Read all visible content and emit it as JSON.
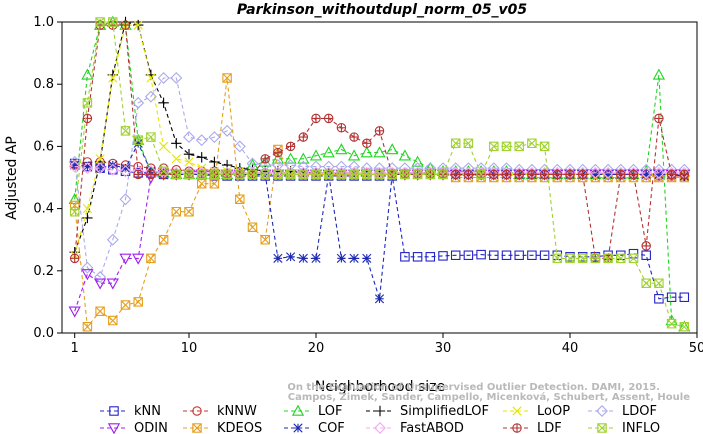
{
  "chart_data": {
    "type": "line",
    "title": "Parkinson_withoutdupl_norm_05_v05",
    "xlabel": "Neighborhood size",
    "ylabel": "Adjusted AP",
    "xlim": [
      0,
      50
    ],
    "ylim": [
      0,
      1
    ],
    "xticks": [
      1,
      10,
      20,
      30,
      40,
      50
    ],
    "yticks": [
      "0.0",
      "0.2",
      "0.4",
      "0.6",
      "0.8",
      "1.0"
    ],
    "watermark": [
      "Campos, Zimek, Sander, Campello, Micenková, Schubert, Assent, Houle",
      "On the Evaluation of Unsupervised Outlier Detection. DAMI, 2015."
    ],
    "x": [
      1,
      2,
      3,
      4,
      5,
      6,
      7,
      8,
      9,
      10,
      11,
      12,
      13,
      14,
      15,
      16,
      17,
      18,
      19,
      20,
      21,
      22,
      23,
      24,
      25,
      26,
      27,
      28,
      29,
      30,
      31,
      32,
      33,
      34,
      35,
      36,
      37,
      38,
      39,
      40,
      41,
      42,
      43,
      44,
      45,
      46,
      47,
      48,
      49
    ],
    "series": [
      {
        "name": "kNN",
        "color": "#2323c8",
        "marker": "square",
        "values": [
          0.545,
          0.535,
          0.53,
          0.525,
          0.52,
          0.515,
          0.515,
          0.51,
          0.51,
          0.51,
          0.51,
          0.505,
          0.505,
          0.505,
          0.505,
          0.505,
          0.505,
          0.505,
          0.505,
          0.505,
          0.505,
          0.505,
          0.505,
          0.505,
          0.505,
          0.505,
          0.245,
          0.245,
          0.245,
          0.248,
          0.25,
          0.25,
          0.252,
          0.25,
          0.25,
          0.25,
          0.25,
          0.25,
          0.25,
          0.245,
          0.245,
          0.245,
          0.25,
          0.25,
          0.255,
          0.25,
          0.11,
          0.115,
          0.115
        ]
      },
      {
        "name": "kNNW",
        "color": "#c83232",
        "marker": "circle",
        "values": [
          0.54,
          0.55,
          0.55,
          0.545,
          0.54,
          0.535,
          0.53,
          0.53,
          0.525,
          0.52,
          0.52,
          0.52,
          0.515,
          0.515,
          0.515,
          0.515,
          0.515,
          0.515,
          0.515,
          0.515,
          0.515,
          0.515,
          0.515,
          0.515,
          0.515,
          0.515,
          0.515,
          0.515,
          0.515,
          0.515,
          0.51,
          0.51,
          0.51,
          0.51,
          0.51,
          0.51,
          0.51,
          0.51,
          0.51,
          0.51,
          0.51,
          0.51,
          0.51,
          0.51,
          0.51,
          0.51,
          0.505,
          0.505,
          0.505
        ]
      },
      {
        "name": "LOF",
        "color": "#22d422",
        "marker": "triangle-up",
        "values": [
          0.43,
          0.83,
          0.99,
          1.0,
          0.99,
          0.62,
          0.52,
          0.515,
          0.51,
          0.51,
          0.51,
          0.51,
          0.51,
          0.52,
          0.54,
          0.55,
          0.56,
          0.56,
          0.56,
          0.57,
          0.58,
          0.59,
          0.57,
          0.58,
          0.58,
          0.59,
          0.57,
          0.55,
          0.53,
          0.52,
          0.52,
          0.52,
          0.52,
          0.52,
          0.52,
          0.51,
          0.51,
          0.51,
          0.51,
          0.51,
          0.51,
          0.51,
          0.51,
          0.51,
          0.51,
          0.52,
          0.83,
          0.04,
          0.02
        ]
      },
      {
        "name": "SimplifiedLOF",
        "color": "#000000",
        "marker": "plus",
        "values": [
          0.26,
          0.37,
          0.55,
          0.83,
          1.0,
          0.99,
          0.83,
          0.74,
          0.61,
          0.575,
          0.565,
          0.55,
          0.54,
          0.53,
          0.525,
          0.52,
          0.52,
          0.52,
          0.515,
          0.515,
          0.515,
          0.51,
          0.51,
          0.51,
          0.51,
          0.51,
          0.51,
          0.51,
          0.51,
          0.51,
          0.51,
          0.51,
          0.51,
          0.51,
          0.51,
          0.51,
          0.51,
          0.51,
          0.51,
          0.51,
          0.51,
          0.51,
          0.51,
          0.51,
          0.51,
          0.51,
          0.51,
          0.51,
          0.505
        ]
      },
      {
        "name": "LoOP",
        "color": "#e6e600",
        "marker": "x",
        "values": [
          0.25,
          0.4,
          0.56,
          0.82,
          0.99,
          0.99,
          0.82,
          0.6,
          0.56,
          0.55,
          0.53,
          0.52,
          0.52,
          0.52,
          0.51,
          0.51,
          0.51,
          0.51,
          0.51,
          0.51,
          0.51,
          0.51,
          0.51,
          0.51,
          0.51,
          0.51,
          0.51,
          0.51,
          0.51,
          0.51,
          0.51,
          0.51,
          0.51,
          0.51,
          0.51,
          0.51,
          0.51,
          0.51,
          0.51,
          0.51,
          0.51,
          0.51,
          0.51,
          0.51,
          0.51,
          0.51,
          0.51,
          0.51,
          0.51
        ]
      },
      {
        "name": "LDOF",
        "color": "#aaaaee",
        "marker": "diamond",
        "values": [
          0.55,
          0.21,
          0.18,
          0.3,
          0.43,
          0.74,
          0.76,
          0.82,
          0.82,
          0.63,
          0.62,
          0.63,
          0.65,
          0.6,
          0.545,
          0.54,
          0.54,
          0.54,
          0.535,
          0.535,
          0.535,
          0.535,
          0.535,
          0.53,
          0.53,
          0.53,
          0.53,
          0.53,
          0.53,
          0.53,
          0.53,
          0.53,
          0.53,
          0.53,
          0.53,
          0.525,
          0.525,
          0.525,
          0.525,
          0.525,
          0.525,
          0.525,
          0.525,
          0.525,
          0.525,
          0.525,
          0.525,
          0.525,
          0.525
        ]
      },
      {
        "name": "ODIN",
        "color": "#a020f0",
        "marker": "triangle-down",
        "values": [
          0.07,
          0.19,
          0.16,
          0.16,
          0.24,
          0.24,
          0.5,
          0.51,
          0.51,
          0.51,
          0.51,
          0.51,
          0.51,
          0.51,
          0.51,
          0.51,
          0.51,
          0.51,
          0.51,
          0.51,
          0.51,
          0.51,
          0.51,
          0.51,
          0.51,
          0.51,
          0.51,
          0.51,
          0.51,
          0.51,
          0.51,
          0.51,
          0.51,
          0.51,
          0.51,
          0.51,
          0.51,
          0.51,
          0.51,
          0.51,
          0.51,
          0.51,
          0.51,
          0.51,
          0.51,
          0.51,
          0.51,
          0.51,
          0.51
        ]
      },
      {
        "name": "KDEOS",
        "color": "#e6a020",
        "marker": "square-x",
        "values": [
          0.41,
          0.02,
          0.07,
          0.04,
          0.09,
          0.1,
          0.24,
          0.3,
          0.39,
          0.39,
          0.48,
          0.48,
          0.82,
          0.43,
          0.34,
          0.3,
          0.59,
          0.51,
          0.51,
          0.51,
          0.51,
          0.51,
          0.51,
          0.51,
          0.51,
          0.51,
          0.51,
          0.51,
          0.51,
          0.51,
          0.5,
          0.5,
          0.5,
          0.5,
          0.5,
          0.5,
          0.5,
          0.5,
          0.5,
          0.5,
          0.5,
          0.5,
          0.5,
          0.5,
          0.5,
          0.5,
          0.5,
          0.5,
          0.5
        ]
      },
      {
        "name": "COF",
        "color": "#1e2ab4",
        "marker": "asterisk",
        "values": [
          0.54,
          0.535,
          0.53,
          0.54,
          0.53,
          0.61,
          0.52,
          0.515,
          0.51,
          0.51,
          0.51,
          0.51,
          0.51,
          0.51,
          0.51,
          0.51,
          0.24,
          0.245,
          0.24,
          0.24,
          0.51,
          0.24,
          0.24,
          0.24,
          0.11,
          0.51,
          0.51,
          0.51,
          0.51,
          0.51,
          0.51,
          0.51,
          0.51,
          0.51,
          0.51,
          0.51,
          0.51,
          0.51,
          0.51,
          0.51,
          0.51,
          0.51,
          0.51,
          0.51,
          0.51,
          0.51,
          0.51,
          0.51,
          0.505
        ]
      },
      {
        "name": "FastABOD",
        "color": "#f5aaf5",
        "marker": "diamond-filled",
        "values": [
          0.535,
          0.53,
          0.53,
          0.525,
          0.52,
          0.52,
          0.52,
          0.515,
          0.515,
          0.515,
          0.515,
          0.515,
          0.515,
          0.515,
          0.515,
          0.515,
          0.515,
          0.515,
          0.515,
          0.515,
          0.515,
          0.515,
          0.515,
          0.515,
          0.515,
          0.515,
          0.515,
          0.515,
          0.515,
          0.515,
          0.515,
          0.515,
          0.515,
          0.515,
          0.515,
          0.515,
          0.515,
          0.515,
          0.515,
          0.515,
          0.515,
          0.515,
          0.515,
          0.515,
          0.515,
          0.515,
          0.515,
          0.515,
          0.515
        ]
      },
      {
        "name": "LDF",
        "color": "#b43232",
        "marker": "circle-plus",
        "values": [
          0.24,
          0.69,
          0.99,
          0.99,
          0.99,
          0.51,
          0.51,
          0.51,
          0.51,
          0.51,
          0.51,
          0.51,
          0.51,
          0.51,
          0.51,
          0.56,
          0.58,
          0.6,
          0.63,
          0.69,
          0.69,
          0.66,
          0.63,
          0.61,
          0.65,
          0.51,
          0.51,
          0.51,
          0.51,
          0.51,
          0.51,
          0.51,
          0.51,
          0.51,
          0.51,
          0.51,
          0.51,
          0.51,
          0.51,
          0.51,
          0.51,
          0.24,
          0.24,
          0.51,
          0.51,
          0.28,
          0.69,
          0.51,
          0.51
        ]
      },
      {
        "name": "INFLO",
        "color": "#a0d232",
        "marker": "box-x",
        "values": [
          0.39,
          0.74,
          1.0,
          1.0,
          0.65,
          0.62,
          0.63,
          0.52,
          0.51,
          0.51,
          0.51,
          0.51,
          0.51,
          0.51,
          0.51,
          0.51,
          0.51,
          0.51,
          0.51,
          0.51,
          0.51,
          0.51,
          0.51,
          0.51,
          0.51,
          0.51,
          0.51,
          0.51,
          0.51,
          0.51,
          0.61,
          0.61,
          0.51,
          0.6,
          0.6,
          0.6,
          0.61,
          0.6,
          0.24,
          0.24,
          0.24,
          0.24,
          0.24,
          0.24,
          0.24,
          0.16,
          0.16,
          0.03,
          0.02
        ]
      }
    ]
  }
}
